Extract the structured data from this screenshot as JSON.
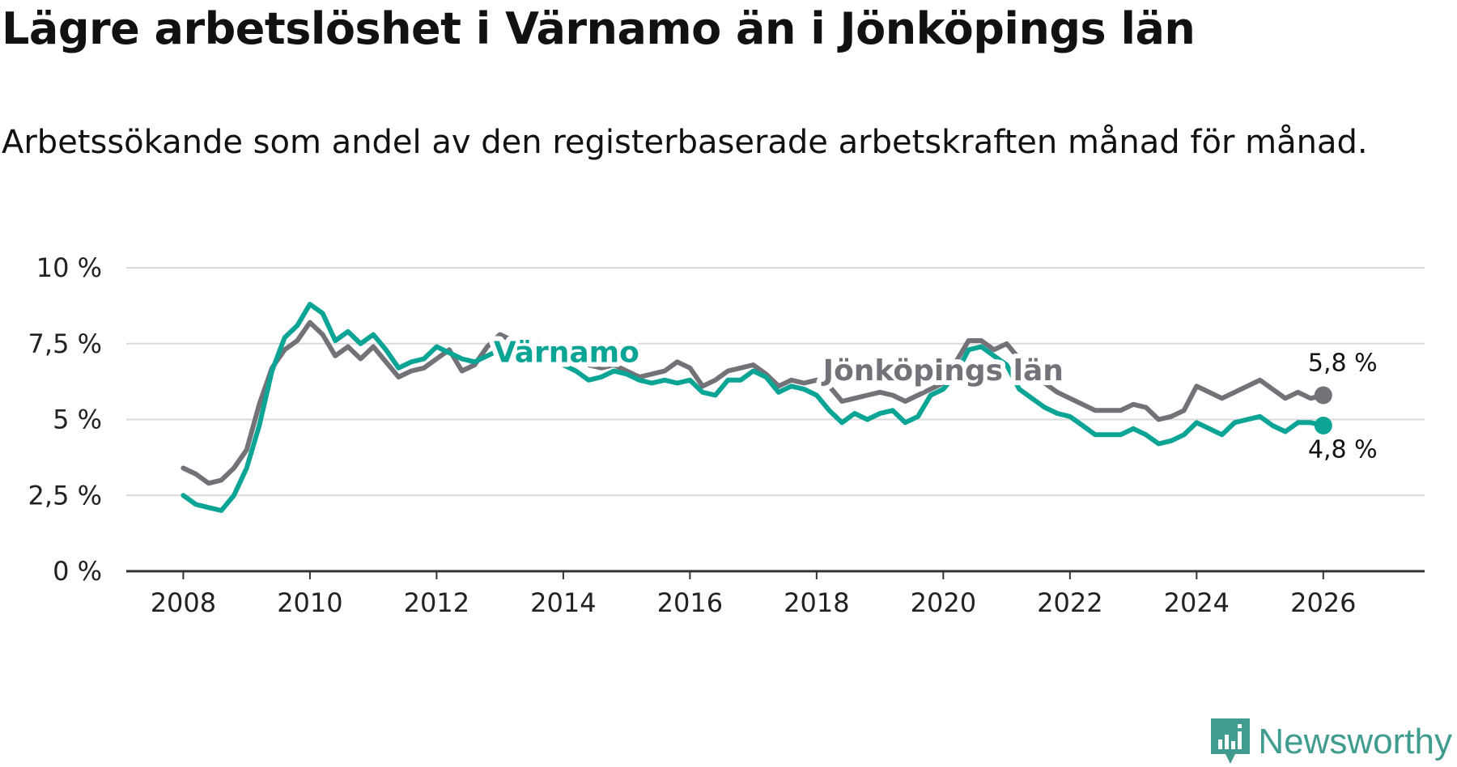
{
  "title": "Lägre arbetslöshet i Värnamo än i Jönköpings län",
  "subtitle": "Arbetssökande som andel av den registerbaserade arbetskraften månad för månad.",
  "brand": {
    "name": "Newsworthy",
    "color": "#3f9c8f"
  },
  "chart_data": {
    "type": "line",
    "xlim": [
      2007.1,
      2027.6
    ],
    "ylim": [
      0,
      10
    ],
    "y_ticks": [
      {
        "value": 0,
        "label": "0 %"
      },
      {
        "value": 2.5,
        "label": "2,5 %"
      },
      {
        "value": 5,
        "label": "5 %"
      },
      {
        "value": 7.5,
        "label": "7,5 %"
      },
      {
        "value": 10,
        "label": "10 %"
      }
    ],
    "x_ticks": [
      {
        "value": 2008,
        "label": "2008"
      },
      {
        "value": 2010,
        "label": "2010"
      },
      {
        "value": 2012,
        "label": "2012"
      },
      {
        "value": 2014,
        "label": "2014"
      },
      {
        "value": 2016,
        "label": "2016"
      },
      {
        "value": 2018,
        "label": "2018"
      },
      {
        "value": 2020,
        "label": "2020"
      },
      {
        "value": 2022,
        "label": "2022"
      },
      {
        "value": 2024,
        "label": "2024"
      },
      {
        "value": 2026,
        "label": "2026"
      }
    ],
    "grid": true,
    "series": [
      {
        "name": "Jönköpings län",
        "color": "#737278",
        "label": "Jönköpings län",
        "label_at": [
          2018.1,
          6.3
        ],
        "end_label": "5,8 %",
        "end_label_at": [
          2026.0,
          6.6
        ],
        "points": [
          [
            2008.0,
            3.4
          ],
          [
            2008.2,
            3.2
          ],
          [
            2008.4,
            2.9
          ],
          [
            2008.6,
            3.0
          ],
          [
            2008.8,
            3.4
          ],
          [
            2009.0,
            4.0
          ],
          [
            2009.2,
            5.5
          ],
          [
            2009.4,
            6.7
          ],
          [
            2009.6,
            7.3
          ],
          [
            2009.8,
            7.6
          ],
          [
            2010.0,
            8.2
          ],
          [
            2010.2,
            7.8
          ],
          [
            2010.4,
            7.1
          ],
          [
            2010.6,
            7.4
          ],
          [
            2010.8,
            7.0
          ],
          [
            2011.0,
            7.4
          ],
          [
            2011.2,
            6.9
          ],
          [
            2011.4,
            6.4
          ],
          [
            2011.6,
            6.6
          ],
          [
            2011.8,
            6.7
          ],
          [
            2012.0,
            7.0
          ],
          [
            2012.2,
            7.3
          ],
          [
            2012.4,
            6.6
          ],
          [
            2012.6,
            6.8
          ],
          [
            2012.8,
            7.4
          ],
          [
            2013.0,
            7.8
          ],
          [
            2013.2,
            7.6
          ],
          [
            2013.4,
            7.3
          ],
          [
            2013.6,
            7.5
          ],
          [
            2013.8,
            7.4
          ],
          [
            2014.0,
            7.2
          ],
          [
            2014.2,
            7.0
          ],
          [
            2014.4,
            6.8
          ],
          [
            2014.6,
            6.7
          ],
          [
            2014.8,
            6.8
          ],
          [
            2015.0,
            6.6
          ],
          [
            2015.2,
            6.4
          ],
          [
            2015.4,
            6.5
          ],
          [
            2015.6,
            6.6
          ],
          [
            2015.8,
            6.9
          ],
          [
            2016.0,
            6.7
          ],
          [
            2016.2,
            6.1
          ],
          [
            2016.4,
            6.3
          ],
          [
            2016.6,
            6.6
          ],
          [
            2016.8,
            6.7
          ],
          [
            2017.0,
            6.8
          ],
          [
            2017.2,
            6.5
          ],
          [
            2017.4,
            6.1
          ],
          [
            2017.6,
            6.3
          ],
          [
            2017.8,
            6.2
          ],
          [
            2018.0,
            6.3
          ],
          [
            2018.2,
            6.1
          ],
          [
            2018.4,
            5.6
          ],
          [
            2018.6,
            5.7
          ],
          [
            2018.8,
            5.8
          ],
          [
            2019.0,
            5.9
          ],
          [
            2019.2,
            5.8
          ],
          [
            2019.4,
            5.6
          ],
          [
            2019.6,
            5.8
          ],
          [
            2019.8,
            6.0
          ],
          [
            2020.0,
            6.2
          ],
          [
            2020.2,
            6.9
          ],
          [
            2020.4,
            7.6
          ],
          [
            2020.6,
            7.6
          ],
          [
            2020.8,
            7.3
          ],
          [
            2021.0,
            7.5
          ],
          [
            2021.2,
            7.0
          ],
          [
            2021.4,
            6.5
          ],
          [
            2021.6,
            6.2
          ],
          [
            2021.8,
            5.9
          ],
          [
            2022.0,
            5.7
          ],
          [
            2022.2,
            5.5
          ],
          [
            2022.4,
            5.3
          ],
          [
            2022.6,
            5.3
          ],
          [
            2022.8,
            5.3
          ],
          [
            2023.0,
            5.5
          ],
          [
            2023.2,
            5.4
          ],
          [
            2023.4,
            5.0
          ],
          [
            2023.6,
            5.1
          ],
          [
            2023.8,
            5.3
          ],
          [
            2024.0,
            6.1
          ],
          [
            2024.2,
            5.9
          ],
          [
            2024.4,
            5.7
          ],
          [
            2024.6,
            5.9
          ],
          [
            2024.8,
            6.1
          ],
          [
            2025.0,
            6.3
          ],
          [
            2025.2,
            6.0
          ],
          [
            2025.4,
            5.7
          ],
          [
            2025.6,
            5.9
          ],
          [
            2025.8,
            5.7
          ],
          [
            2026.0,
            5.8
          ]
        ]
      },
      {
        "name": "Värnamo",
        "color": "#0ca595",
        "label": "Värnamo",
        "label_at": [
          2012.9,
          6.9
        ],
        "end_label": "4,8 %",
        "end_label_at": [
          2026.0,
          3.75
        ],
        "points": [
          [
            2008.0,
            2.5
          ],
          [
            2008.2,
            2.2
          ],
          [
            2008.4,
            2.1
          ],
          [
            2008.6,
            2.0
          ],
          [
            2008.8,
            2.5
          ],
          [
            2009.0,
            3.4
          ],
          [
            2009.2,
            4.8
          ],
          [
            2009.4,
            6.6
          ],
          [
            2009.6,
            7.7
          ],
          [
            2009.8,
            8.1
          ],
          [
            2010.0,
            8.8
          ],
          [
            2010.2,
            8.5
          ],
          [
            2010.4,
            7.6
          ],
          [
            2010.6,
            7.9
          ],
          [
            2010.8,
            7.5
          ],
          [
            2011.0,
            7.8
          ],
          [
            2011.2,
            7.3
          ],
          [
            2011.4,
            6.7
          ],
          [
            2011.6,
            6.9
          ],
          [
            2011.8,
            7.0
          ],
          [
            2012.0,
            7.4
          ],
          [
            2012.2,
            7.2
          ],
          [
            2012.4,
            7.0
          ],
          [
            2012.6,
            6.9
          ],
          [
            2012.8,
            7.1
          ],
          [
            2013.0,
            7.3
          ],
          [
            2013.2,
            7.4
          ],
          [
            2013.4,
            7.2
          ],
          [
            2013.6,
            7.4
          ],
          [
            2013.8,
            7.2
          ],
          [
            2014.0,
            6.8
          ],
          [
            2014.2,
            6.6
          ],
          [
            2014.4,
            6.3
          ],
          [
            2014.6,
            6.4
          ],
          [
            2014.8,
            6.6
          ],
          [
            2015.0,
            6.5
          ],
          [
            2015.2,
            6.3
          ],
          [
            2015.4,
            6.2
          ],
          [
            2015.6,
            6.3
          ],
          [
            2015.8,
            6.2
          ],
          [
            2016.0,
            6.3
          ],
          [
            2016.2,
            5.9
          ],
          [
            2016.4,
            5.8
          ],
          [
            2016.6,
            6.3
          ],
          [
            2016.8,
            6.3
          ],
          [
            2017.0,
            6.6
          ],
          [
            2017.2,
            6.4
          ],
          [
            2017.4,
            5.9
          ],
          [
            2017.6,
            6.1
          ],
          [
            2017.8,
            6.0
          ],
          [
            2018.0,
            5.8
          ],
          [
            2018.2,
            5.3
          ],
          [
            2018.4,
            4.9
          ],
          [
            2018.6,
            5.2
          ],
          [
            2018.8,
            5.0
          ],
          [
            2019.0,
            5.2
          ],
          [
            2019.2,
            5.3
          ],
          [
            2019.4,
            4.9
          ],
          [
            2019.6,
            5.1
          ],
          [
            2019.8,
            5.8
          ],
          [
            2020.0,
            6.0
          ],
          [
            2020.2,
            6.5
          ],
          [
            2020.4,
            7.3
          ],
          [
            2020.6,
            7.4
          ],
          [
            2020.8,
            7.1
          ],
          [
            2021.0,
            6.8
          ],
          [
            2021.2,
            6.0
          ],
          [
            2021.4,
            5.7
          ],
          [
            2021.6,
            5.4
          ],
          [
            2021.8,
            5.2
          ],
          [
            2022.0,
            5.1
          ],
          [
            2022.2,
            4.8
          ],
          [
            2022.4,
            4.5
          ],
          [
            2022.6,
            4.5
          ],
          [
            2022.8,
            4.5
          ],
          [
            2023.0,
            4.7
          ],
          [
            2023.2,
            4.5
          ],
          [
            2023.4,
            4.2
          ],
          [
            2023.6,
            4.3
          ],
          [
            2023.8,
            4.5
          ],
          [
            2024.0,
            4.9
          ],
          [
            2024.2,
            4.7
          ],
          [
            2024.4,
            4.5
          ],
          [
            2024.6,
            4.9
          ],
          [
            2024.8,
            5.0
          ],
          [
            2025.0,
            5.1
          ],
          [
            2025.2,
            4.8
          ],
          [
            2025.4,
            4.6
          ],
          [
            2025.6,
            4.9
          ],
          [
            2025.8,
            4.9
          ],
          [
            2026.0,
            4.8
          ]
        ]
      }
    ]
  }
}
